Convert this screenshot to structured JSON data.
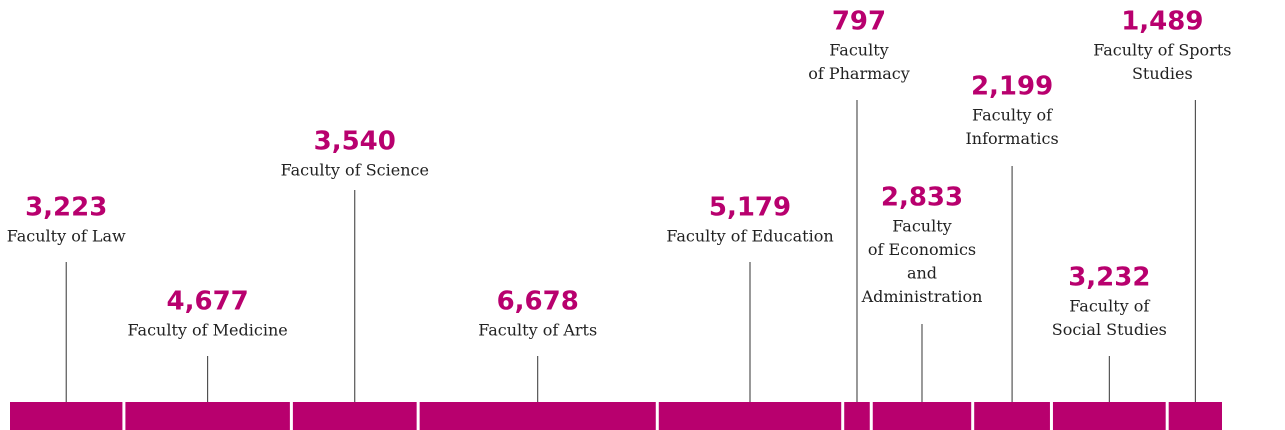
{
  "chart_data": {
    "type": "stacked-bar",
    "categories": [
      [
        "Faculty of Law"
      ],
      [
        "Faculty of Medicine"
      ],
      [
        "Faculty of Science"
      ],
      [
        "Faculty of Arts"
      ],
      [
        "Faculty of Education"
      ],
      [
        "Faculty",
        "of Pharmacy"
      ],
      [
        "Faculty",
        "of Economics",
        "and",
        "Administration"
      ],
      [
        "Faculty of",
        "Informatics"
      ],
      [
        "Faculty of",
        "Social Studies"
      ],
      [
        "Faculty of Sports",
        "Studies"
      ]
    ],
    "values": [
      3223,
      4677,
      3540,
      6678,
      5179,
      797,
      2833,
      2199,
      3232,
      1489
    ],
    "value_labels": [
      "3,223",
      "4,677",
      "3,540",
      "6,678",
      "5,179",
      "797",
      "2,833",
      "2,199",
      "3,232",
      "1,489"
    ],
    "color": "#b8006e"
  }
}
